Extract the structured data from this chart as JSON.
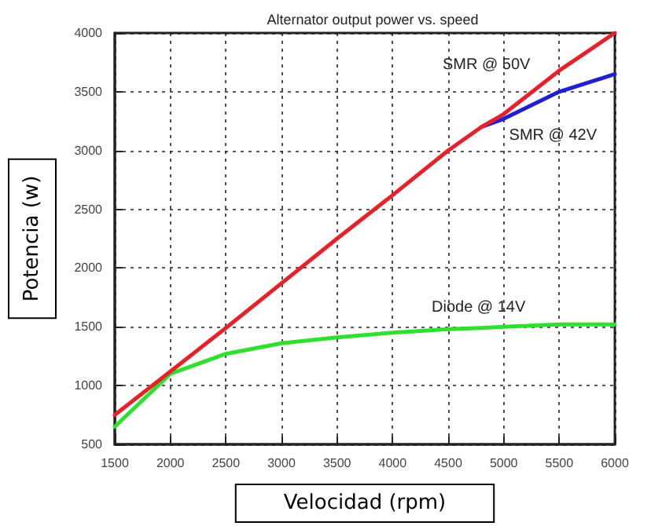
{
  "chart_data": {
    "type": "line",
    "title": "Alternator output power vs. speed",
    "xlabel": "Velocidad (rpm)",
    "ylabel": "Potencia (w)",
    "x": [
      1500,
      2000,
      2500,
      3000,
      3500,
      4000,
      4500,
      4800,
      5000,
      5500,
      6000
    ],
    "series": [
      {
        "name": "SMR @ 50V",
        "color": "#e8202a",
        "values": [
          750,
          1120,
          1490,
          1870,
          2250,
          2620,
          3000,
          3200,
          3310,
          3680,
          4000
        ]
      },
      {
        "name": "SMR @ 42V",
        "color": "#2020d0",
        "values": [
          null,
          null,
          null,
          null,
          null,
          null,
          null,
          3200,
          3270,
          3500,
          3650
        ]
      },
      {
        "name": "Diode @ 14V",
        "color": "#30e030",
        "values": [
          650,
          1100,
          1270,
          1360,
          1410,
          1450,
          1480,
          1490,
          1500,
          1520,
          1520
        ]
      }
    ],
    "xlim": [
      1500,
      6000
    ],
    "xticks": [
      1500,
      2000,
      2500,
      3000,
      3500,
      4000,
      4500,
      5000,
      5500,
      6000
    ],
    "ylim": [
      500,
      4000
    ],
    "yticks": [
      500,
      1000,
      1500,
      2000,
      2500,
      3000,
      3500,
      4000
    ],
    "grid": true,
    "legend": false,
    "marker": "none",
    "line_style": "solid"
  }
}
